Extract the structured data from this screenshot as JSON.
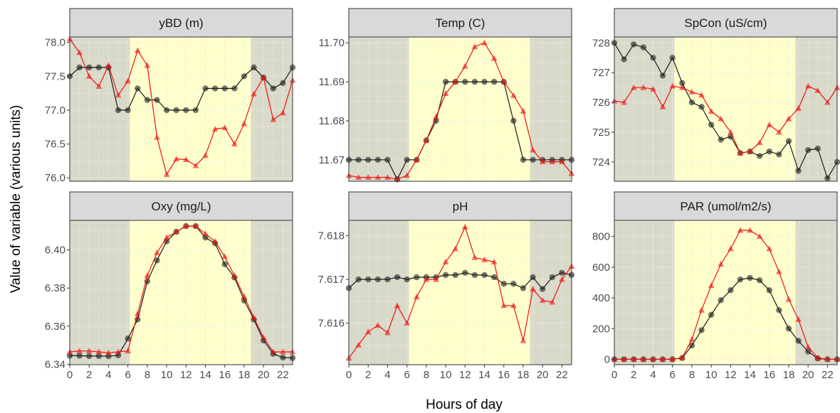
{
  "chart_data": {
    "type": "line",
    "xlabel": "Hours of day",
    "ylabel": "Value of variable (various units)",
    "x_ticks": [
      "0",
      "2",
      "4",
      "6",
      "8",
      "10",
      "12",
      "14",
      "16",
      "18",
      "20",
      "22"
    ],
    "colors": {
      "series1": "#1a1a1a",
      "series2": "#ee1111",
      "night": "#d9d9c9",
      "day": "#ffffcc"
    },
    "night_bands": [
      [
        0,
        6.2
      ],
      [
        18.7,
        23
      ]
    ],
    "x": [
      0,
      1,
      2,
      3,
      4,
      5,
      6,
      7,
      8,
      9,
      10,
      11,
      12,
      13,
      14,
      15,
      16,
      17,
      18,
      19,
      20,
      21,
      22,
      23
    ],
    "panels": [
      {
        "title": "yBD (m)",
        "ylim": [
          75.95,
          78.08
        ],
        "y_ticks": [
          "76.0",
          "76.5",
          "77.0",
          "77.5",
          "78.0"
        ],
        "y_tick_values": [
          76.0,
          76.5,
          77.0,
          77.5,
          78.0
        ],
        "series": [
          {
            "marker": "circle",
            "values": [
              77.5,
              77.63,
              77.63,
              77.63,
              77.63,
              77.0,
              77.0,
              77.32,
              77.15,
              77.15,
              77.0,
              77.0,
              77.0,
              77.0,
              77.32,
              77.32,
              77.32,
              77.32,
              77.5,
              77.63,
              77.48,
              77.32,
              77.4,
              77.63
            ]
          },
          {
            "marker": "triangle",
            "values": [
              78.05,
              77.85,
              77.5,
              77.35,
              77.66,
              77.22,
              77.43,
              77.88,
              77.66,
              76.6,
              76.05,
              76.28,
              76.27,
              76.18,
              76.33,
              76.72,
              76.74,
              76.5,
              76.8,
              77.24,
              77.48,
              76.86,
              76.96,
              77.44
            ]
          }
        ]
      },
      {
        "title": "Temp (C)",
        "ylim": [
          11.6645,
          11.7015
        ],
        "y_ticks": [
          "11.67",
          "11.68",
          "11.69",
          "11.70"
        ],
        "y_tick_values": [
          11.67,
          11.68,
          11.69,
          11.7
        ],
        "series": [
          {
            "marker": "circle",
            "values": [
              11.67,
              11.67,
              11.67,
              11.67,
              11.67,
              11.665,
              11.67,
              11.67,
              11.675,
              11.68,
              11.69,
              11.69,
              11.69,
              11.69,
              11.69,
              11.69,
              11.69,
              11.68,
              11.67,
              11.67,
              11.67,
              11.67,
              11.67,
              11.67
            ]
          },
          {
            "marker": "triangle",
            "values": [
              11.666,
              11.6655,
              11.6655,
              11.6655,
              11.6655,
              11.665,
              11.666,
              11.67,
              11.675,
              11.681,
              11.687,
              11.69,
              11.694,
              11.699,
              11.7,
              11.696,
              11.69,
              11.6865,
              11.6825,
              11.6725,
              11.6695,
              11.6695,
              11.6695,
              11.6665
            ]
          }
        ]
      },
      {
        "title": "SpCon (uS/cm)",
        "ylim": [
          723.35,
          728.2
        ],
        "y_ticks": [
          "724",
          "725",
          "726",
          "727",
          "728"
        ],
        "y_tick_values": [
          724,
          725,
          726,
          727,
          728
        ],
        "series": [
          {
            "marker": "circle",
            "values": [
              728.0,
              727.45,
              727.95,
              727.85,
              727.5,
              726.9,
              727.5,
              726.65,
              726.0,
              725.85,
              725.25,
              724.75,
              724.85,
              724.3,
              724.35,
              724.2,
              724.35,
              724.25,
              724.7,
              723.7,
              724.4,
              724.45,
              723.45,
              724.0
            ]
          },
          {
            "marker": "triangle",
            "values": [
              726.05,
              726.0,
              726.5,
              726.5,
              726.45,
              725.85,
              726.55,
              726.5,
              726.35,
              726.25,
              725.7,
              725.45,
              725.0,
              724.3,
              724.35,
              724.65,
              725.25,
              725.0,
              725.45,
              725.8,
              726.55,
              726.4,
              726.0,
              726.5
            ]
          }
        ]
      },
      {
        "title": "Oxy (mg/L)",
        "ylim": [
          6.3398,
          6.4155
        ],
        "y_ticks": [
          "6.34",
          "6.36",
          "6.38",
          "6.40"
        ],
        "y_tick_values": [
          6.34,
          6.36,
          6.38,
          6.4
        ],
        "series": [
          {
            "marker": "circle",
            "values": [
              6.3445,
              6.3445,
              6.3443,
              6.3443,
              6.3442,
              6.3447,
              6.3535,
              6.3635,
              6.3835,
              6.3945,
              6.4045,
              6.4095,
              6.4125,
              6.4125,
              6.4065,
              6.4035,
              6.3925,
              6.3855,
              6.3735,
              6.3635,
              6.3525,
              6.3455,
              6.3435,
              6.3433
            ]
          },
          {
            "marker": "triangle",
            "values": [
              6.3465,
              6.347,
              6.347,
              6.3465,
              6.346,
              6.3465,
              6.347,
              6.3665,
              6.3865,
              6.3985,
              6.4065,
              6.4095,
              6.4125,
              6.4125,
              6.4085,
              6.4045,
              6.3965,
              6.3865,
              6.3755,
              6.3645,
              6.354,
              6.3465,
              6.3465,
              6.3465
            ]
          }
        ]
      },
      {
        "title": "pH",
        "ylim": [
          7.61505,
          7.61835
        ],
        "y_ticks": [
          "7.616",
          "7.617",
          "7.618"
        ],
        "y_tick_values": [
          7.616,
          7.617,
          7.618
        ],
        "series": [
          {
            "marker": "circle",
            "values": [
              7.6168,
              7.617,
              7.617,
              7.617,
              7.617,
              7.61705,
              7.617,
              7.61705,
              7.61705,
              7.61705,
              7.6171,
              7.6171,
              7.61715,
              7.6171,
              7.6171,
              7.61705,
              7.6169,
              7.6169,
              7.6168,
              7.61705,
              7.61678,
              7.61705,
              7.61715,
              7.6171
            ]
          },
          {
            "marker": "triangle",
            "values": [
              7.6152,
              7.6155,
              7.6158,
              7.61595,
              7.61578,
              7.6164,
              7.616,
              7.6166,
              7.617,
              7.617,
              7.6174,
              7.6177,
              7.6182,
              7.6175,
              7.61745,
              7.6174,
              7.6164,
              7.6164,
              7.6156,
              7.61678,
              7.61652,
              7.61648,
              7.617,
              7.6173
            ]
          }
        ]
      },
      {
        "title": "PAR (umol/m2/s)",
        "ylim": [
          -35,
          905
        ],
        "y_ticks": [
          "0",
          "200",
          "400",
          "600",
          "800"
        ],
        "y_tick_values": [
          0,
          200,
          400,
          600,
          800
        ],
        "series": [
          {
            "marker": "circle",
            "values": [
              0,
              0,
              0,
              0,
              0,
              0,
              0,
              8,
              90,
              190,
              290,
              385,
              450,
              520,
              530,
              515,
              450,
              320,
              200,
              120,
              50,
              5,
              0,
              0
            ]
          },
          {
            "marker": "triangle",
            "values": [
              0,
              0,
              0,
              0,
              0,
              0,
              0,
              10,
              130,
              320,
              480,
              620,
              720,
              840,
              840,
              800,
              720,
              570,
              390,
              260,
              80,
              10,
              0,
              0
            ]
          }
        ]
      }
    ]
  }
}
